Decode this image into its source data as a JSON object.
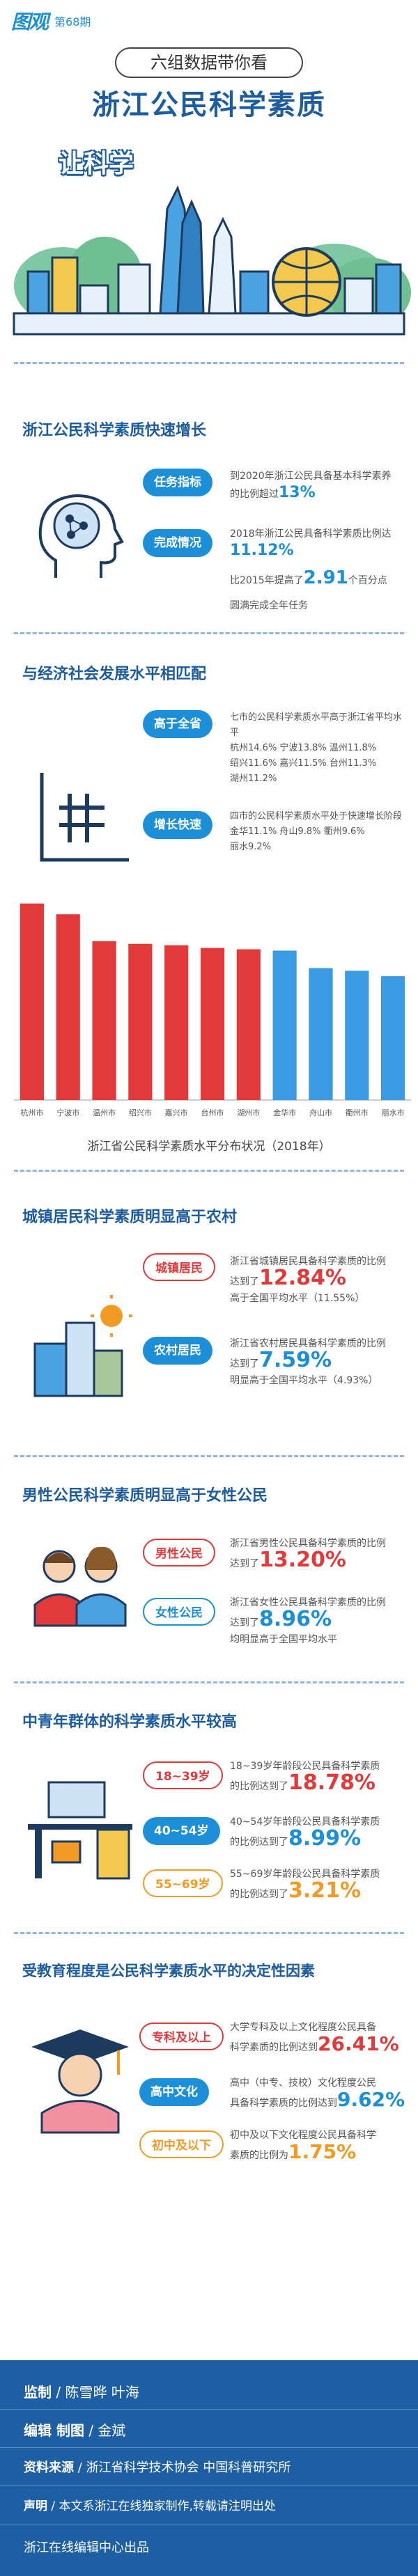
{
  "header": {
    "brand": "图观",
    "issue": "第68期",
    "subtitle": "六组数据带你看",
    "title": "浙江公民科学素质",
    "hero_sub": "让科学"
  },
  "colors": {
    "primary": "#1d5c9e",
    "accent": "#1d8fd8",
    "red": "#e23a3a",
    "orange": "#f39a24"
  },
  "sections": {
    "s1": {
      "title": "浙江公民科学素质快速增长",
      "tag1": "任务指标",
      "tag1_text": "到2020年浙江公民具备基本科学素养的比例超过",
      "tag1_big": "13%",
      "tag2": "完成情况",
      "tag2_text": "2018年浙江公民具备科学素质比例达",
      "tag2_big": "11.12%",
      "tag2_text2a": "比2015年提高了",
      "tag2_big2": "2.91",
      "tag2_text2b": "个百分点",
      "tag2_text3": "圆满完成全年任务"
    },
    "s2": {
      "title": "与经济社会发展水平相匹配",
      "tag1": "高于全省",
      "tag1_lines": [
        "七市的公民科学素质水平高于浙江省平均水平",
        "杭州14.6% 宁波13.8% 温州11.8%",
        "绍兴11.6% 嘉兴11.5% 台州11.3%",
        "湖州11.2%"
      ],
      "tag2": "增长快速",
      "tag2_lines": [
        "四市的公民科学素质水平处于快速增长阶段",
        "金华11.1% 舟山9.8% 衢州9.6%",
        "丽水9.2%"
      ]
    },
    "s3": {
      "title": "城镇居民科学素质明显高于农村",
      "tag1": "城镇居民",
      "tag1_text": "浙江省城镇居民具备科学素质的比例",
      "tag1_prefix": "达到了",
      "tag1_big": "12.84%",
      "tag1_note": "高于全国平均水平（11.55%）",
      "tag2": "农村居民",
      "tag2_text": "浙江省农村居民具备科学素质的比例",
      "tag2_prefix": "达到了",
      "tag2_big": "7.59%",
      "tag2_note": "明显高于全国平均水平（4.93%）"
    },
    "s4": {
      "title": "男性公民科学素质明显高于女性公民",
      "tag1": "男性公民",
      "tag1_text": "浙江省男性公民具备科学素质的比例",
      "tag1_prefix": "达到了",
      "tag1_big": "13.20%",
      "tag2": "女性公民",
      "tag2_text": "浙江省女性公民具备科学素质的比例",
      "tag2_prefix": "达到了",
      "tag2_big": "8.96%",
      "tag2_note": "均明显高于全国平均水平"
    },
    "s5": {
      "title": "中青年群体的科学素质水平较高",
      "tag1": "18~39岁",
      "tag1_text": "18~39岁年龄段公民具备科学素质",
      "tag1_prefix": "的比例达到了",
      "tag1_big": "18.78%",
      "tag2": "40~54岁",
      "tag2_text": "40~54岁年龄段公民具备科学素质",
      "tag2_prefix": "的比例达到了",
      "tag2_big": "8.99%",
      "tag3": "55~69岁",
      "tag3_text": "55~69岁年龄段公民具备科学素质",
      "tag3_prefix": "的比例达到了",
      "tag3_big": "3.21%"
    },
    "s6": {
      "title": "受教育程度是公民科学素质水平的决定性因素",
      "tag1": "专科及以上",
      "tag1_text": "大学专科及以上文化程度公民具备",
      "tag1_prefix": "科学素质的比例达到",
      "tag1_big": "26.41%",
      "tag2": "高中文化",
      "tag2_text": "高中（中专、技校）文化程度公民",
      "tag2_prefix": "具备科学素质的比例达到",
      "tag2_big": "9.62%",
      "tag3": "初中及以下",
      "tag3_text": "初中及以下文化程度公民具备科学",
      "tag3_prefix": "素质的比例为",
      "tag3_big": "1.75%"
    }
  },
  "chart_data": {
    "type": "bar",
    "title": "浙江省公民科学素质水平分布状况（2018年）",
    "categories": [
      "杭州市",
      "宁波市",
      "温州市",
      "绍兴市",
      "嘉兴市",
      "台州市",
      "湖州市",
      "金华市",
      "舟山市",
      "衢州市",
      "丽水市"
    ],
    "values": [
      14.6,
      13.8,
      11.8,
      11.6,
      11.5,
      11.3,
      11.2,
      11.1,
      9.8,
      9.6,
      9.2
    ],
    "colors": [
      "#e23a3a",
      "#e23a3a",
      "#e23a3a",
      "#e23a3a",
      "#e23a3a",
      "#e23a3a",
      "#e23a3a",
      "#3a9ae2",
      "#3a9ae2",
      "#3a9ae2",
      "#3a9ae2"
    ],
    "xlabel": "",
    "ylabel": "",
    "ylim": [
      0,
      15
    ],
    "grid": false,
    "legend": "none"
  },
  "footer": {
    "supervise_label": "监制",
    "supervise": "陈雪晔 叶海",
    "edit_label": "编辑 制图",
    "edit": "金斌",
    "source_label": "资料来源",
    "source": "浙江省科学技术协会 中国科普研究所",
    "statement_label": "声明",
    "statement": "本文系浙江在线独家制作,转载请注明出处",
    "produced": "浙江在线编辑中心出品"
  }
}
